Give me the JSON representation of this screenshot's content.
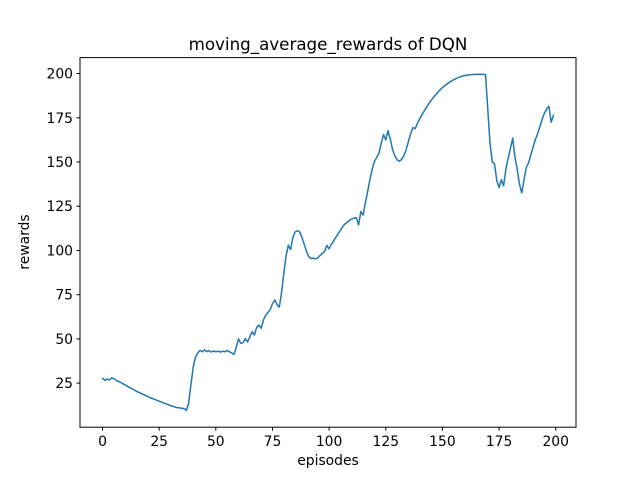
{
  "figure": {
    "background": "#ffffff"
  },
  "chart_data": {
    "type": "line",
    "title": "moving_average_rewards of DQN",
    "xlabel": "episodes",
    "ylabel": "rewards",
    "xlim": [
      -9.95,
      208.95
    ],
    "ylim": [
      0.1,
      209.0
    ],
    "xticks": [
      0,
      25,
      50,
      75,
      100,
      125,
      150,
      175,
      200
    ],
    "yticks": [
      25,
      50,
      75,
      100,
      125,
      150,
      175,
      200
    ],
    "grid": false,
    "legend": "none",
    "line_width": 1.5,
    "spine_color": "#000000",
    "text_color": "#000000",
    "series": [
      {
        "name": "moving_average_rewards",
        "color": "#1f77b4",
        "x_start": 0,
        "x_step": 1,
        "values": [
          27.8,
          26.6,
          27.4,
          26.7,
          28.0,
          27.5,
          26.6,
          26.0,
          25.4,
          24.7,
          24.0,
          23.2,
          22.5,
          21.8,
          21.1,
          20.4,
          19.8,
          19.2,
          18.6,
          18.0,
          17.4,
          16.8,
          16.3,
          15.8,
          15.3,
          14.8,
          14.3,
          13.8,
          13.3,
          12.8,
          12.3,
          11.9,
          11.5,
          11.2,
          11.0,
          10.8,
          10.6,
          9.6,
          13.5,
          24.0,
          34.0,
          39.5,
          42.0,
          43.5,
          42.7,
          43.8,
          42.8,
          43.4,
          42.6,
          43.2,
          42.7,
          43.1,
          42.6,
          43.0,
          42.8,
          43.4,
          42.8,
          42.0,
          41.3,
          45.0,
          50.0,
          47.5,
          47.8,
          50.2,
          48.3,
          51.0,
          54.0,
          52.2,
          56.5,
          57.8,
          56.0,
          60.6,
          63.4,
          65.0,
          66.5,
          70.0,
          72.0,
          69.5,
          68.0,
          76.0,
          87.0,
          97.0,
          103.0,
          100.5,
          107.5,
          110.5,
          111.2,
          110.5,
          107.5,
          103.5,
          99.5,
          96.5,
          95.4,
          95.7,
          95.3,
          95.8,
          97.2,
          98.2,
          99.5,
          102.8,
          101.0,
          103.5,
          105.5,
          107.5,
          109.5,
          111.5,
          113.5,
          115.0,
          116.0,
          117.0,
          117.8,
          118.3,
          118.5,
          114.5,
          122.0,
          120.0,
          127.0,
          133.5,
          140.0,
          146.0,
          150.5,
          152.5,
          155.0,
          160.5,
          165.5,
          162.5,
          167.7,
          163.0,
          157.0,
          153.5,
          151.3,
          150.4,
          151.5,
          153.5,
          157.0,
          161.5,
          166.0,
          169.5,
          168.8,
          172.0,
          174.5,
          176.8,
          179.0,
          181.0,
          183.0,
          184.8,
          186.5,
          188.0,
          189.5,
          190.8,
          192.0,
          193.1,
          194.1,
          195.0,
          195.8,
          196.5,
          197.1,
          197.7,
          198.2,
          198.6,
          198.9,
          199.1,
          199.3,
          199.4,
          199.5,
          199.5,
          199.5,
          199.5,
          199.5,
          199.4,
          180.5,
          160.5,
          150.0,
          149.0,
          139.5,
          135.5,
          140.0,
          136.5,
          146.0,
          152.0,
          157.5,
          163.5,
          153.0,
          146.0,
          137.5,
          132.5,
          140.0,
          147.0,
          149.5,
          154.0,
          158.5,
          162.5,
          166.0,
          170.0,
          174.0,
          177.5,
          180.0,
          181.5,
          172.5,
          176.5
        ]
      }
    ]
  }
}
